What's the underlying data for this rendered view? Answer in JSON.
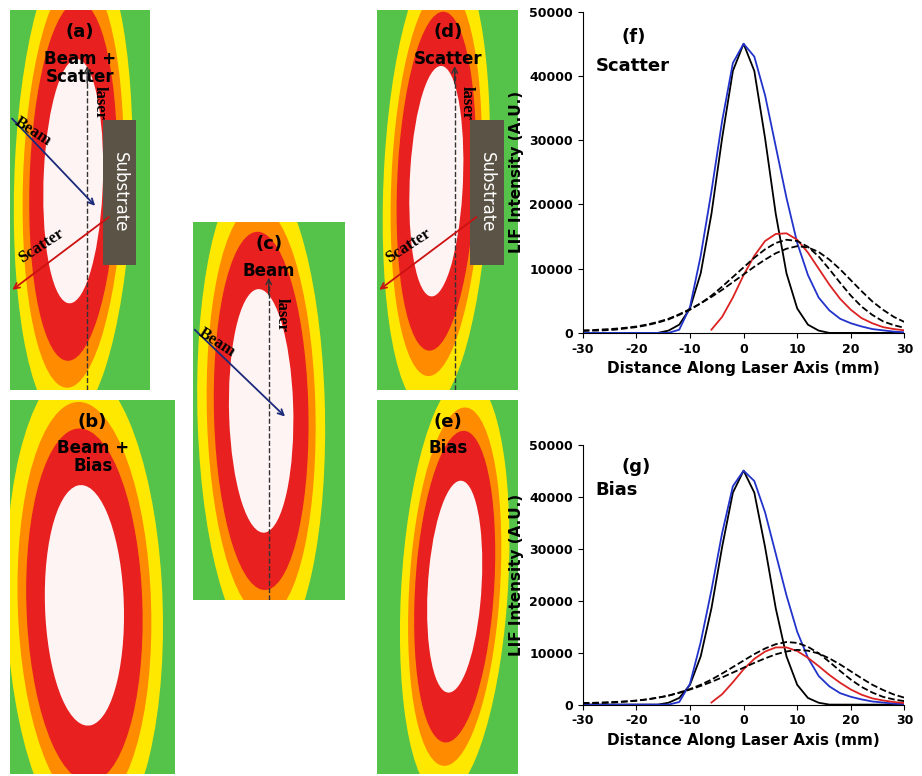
{
  "images": [
    {
      "label": "(a)",
      "title": "Beam +\nScatter",
      "laser": "laser",
      "beam": "Beam",
      "scatter": "Scatter",
      "substrate": "Substrate"
    },
    {
      "label": "(b)",
      "title": "Beam +\nBias"
    },
    {
      "label": "(c)",
      "title": "Beam",
      "laser": "laser",
      "beam": "Beam"
    },
    {
      "label": "(d)",
      "title": "Scatter",
      "laser": "laser",
      "scatter": "Scatter",
      "substrate": "Substrate"
    },
    {
      "label": "(e)",
      "title": "Bias"
    }
  ],
  "chart_data": [
    {
      "type": "line",
      "title": "(f)",
      "subtitle": "Scatter",
      "x_label": "Distance Along Laser Axis (mm)",
      "y_label": "LIF Intensity (A.U.)",
      "x": [
        -30,
        -28,
        -26,
        -24,
        -22,
        -20,
        -18,
        -16,
        -14,
        -12,
        -10,
        -8,
        -6,
        -4,
        -2,
        0,
        2,
        4,
        6,
        8,
        10,
        12,
        14,
        16,
        18,
        20,
        22,
        24,
        26,
        28,
        30
      ],
      "xlim": [
        -30,
        30
      ],
      "xticks": [
        -30,
        -20,
        -10,
        0,
        10,
        20,
        30
      ],
      "ylim": [
        0,
        50000
      ],
      "yticks": [
        0,
        10000,
        20000,
        30000,
        40000,
        50000
      ],
      "series": [
        {
          "color": "#000000",
          "line_style": "solid",
          "values": [
            0,
            0,
            0,
            0,
            0,
            0,
            0,
            0,
            360,
            1280,
            3800,
            9270,
            18500,
            30330,
            40770,
            45000,
            40770,
            30330,
            18500,
            9270,
            3800,
            1280,
            360,
            0,
            0,
            0,
            0,
            0,
            0,
            0,
            0
          ]
        },
        {
          "color": "#2233cc",
          "line_style": "solid",
          "values": [
            0,
            0,
            0,
            0,
            0,
            0,
            0,
            0,
            0,
            500,
            4000,
            12000,
            22000,
            33000,
            42000,
            45000,
            43000,
            37000,
            29000,
            21000,
            14000,
            9000,
            5500,
            3500,
            2200,
            1500,
            1000,
            600,
            400,
            200,
            100
          ]
        },
        {
          "color": "#dd2222",
          "line_style": "solid",
          "values": [
            null,
            null,
            null,
            null,
            null,
            null,
            null,
            null,
            null,
            null,
            null,
            null,
            500,
            2500,
            5500,
            9000,
            12000,
            14300,
            15400,
            15500,
            14500,
            12500,
            10000,
            7500,
            5300,
            3600,
            2300,
            1500,
            900,
            600,
            400
          ]
        },
        {
          "color": "#000000",
          "line_style": "dashed",
          "values": [
            300,
            350,
            400,
            500,
            700,
            900,
            1200,
            1600,
            2100,
            2800,
            3600,
            4600,
            5800,
            7200,
            8700,
            10200,
            11700,
            13000,
            14000,
            14500,
            14300,
            13400,
            11900,
            9900,
            7800,
            5800,
            4100,
            2800,
            1800,
            1200,
            800
          ]
        },
        {
          "color": "#000000",
          "line_style": "dashed",
          "values": [
            400,
            450,
            550,
            650,
            800,
            1000,
            1300,
            1700,
            2200,
            2900,
            3700,
            4600,
            5600,
            6700,
            7900,
            9100,
            10300,
            11400,
            12400,
            13100,
            13500,
            13300,
            12600,
            11400,
            9900,
            8200,
            6500,
            4900,
            3600,
            2500,
            1700
          ]
        }
      ]
    },
    {
      "type": "line",
      "title": "(g)",
      "subtitle": "Bias",
      "x_label": "Distance Along Laser Axis (mm)",
      "y_label": "LIF Intensity (A.U.)",
      "x": [
        -30,
        -28,
        -26,
        -24,
        -22,
        -20,
        -18,
        -16,
        -14,
        -12,
        -10,
        -8,
        -6,
        -4,
        -2,
        0,
        2,
        4,
        6,
        8,
        10,
        12,
        14,
        16,
        18,
        20,
        22,
        24,
        26,
        28,
        30
      ],
      "xlim": [
        -30,
        30
      ],
      "xticks": [
        -30,
        -20,
        -10,
        0,
        10,
        20,
        30
      ],
      "ylim": [
        0,
        50000
      ],
      "yticks": [
        0,
        10000,
        20000,
        30000,
        40000,
        50000
      ],
      "series": [
        {
          "color": "#000000",
          "line_style": "solid",
          "values": [
            0,
            0,
            0,
            0,
            0,
            0,
            0,
            0,
            360,
            1280,
            3800,
            9270,
            18500,
            30330,
            40770,
            45000,
            40770,
            30330,
            18500,
            9270,
            3800,
            1280,
            360,
            0,
            0,
            0,
            0,
            0,
            0,
            0,
            0
          ]
        },
        {
          "color": "#2233cc",
          "line_style": "solid",
          "values": [
            0,
            0,
            0,
            0,
            0,
            0,
            0,
            0,
            0,
            500,
            4000,
            12000,
            22000,
            33000,
            42000,
            45000,
            43000,
            37000,
            29000,
            21000,
            14000,
            9000,
            5500,
            3500,
            2200,
            1500,
            1000,
            600,
            400,
            200,
            100
          ]
        },
        {
          "color": "#dd2222",
          "line_style": "solid",
          "values": [
            null,
            null,
            null,
            null,
            null,
            null,
            null,
            null,
            null,
            null,
            null,
            null,
            400,
            2000,
            4300,
            6800,
            8800,
            10200,
            11000,
            11000,
            10300,
            9000,
            7400,
            5700,
            4200,
            2900,
            1900,
            1200,
            800,
            500,
            300
          ]
        },
        {
          "color": "#000000",
          "line_style": "dashed",
          "values": [
            250,
            290,
            330,
            420,
            580,
            750,
            1000,
            1330,
            1740,
            2320,
            2990,
            3820,
            4810,
            5980,
            7220,
            8470,
            9710,
            10790,
            11620,
            12040,
            11870,
            11120,
            9880,
            8220,
            6470,
            4810,
            3400,
            2320,
            1490,
            1000,
            660
          ]
        },
        {
          "color": "#000000",
          "line_style": "dashed",
          "values": [
            310,
            350,
            430,
            510,
            620,
            780,
            1010,
            1330,
            1720,
            2260,
            2890,
            3590,
            4370,
            5230,
            6160,
            7100,
            8030,
            8890,
            9670,
            10220,
            10530,
            10370,
            9830,
            8890,
            7720,
            6400,
            5070,
            3820,
            2810,
            1950,
            1330
          ]
        }
      ]
    }
  ]
}
